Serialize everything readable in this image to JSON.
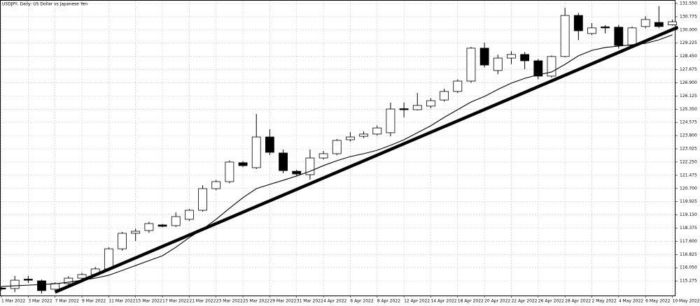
{
  "chart_data": {
    "type": "candlestick",
    "title": "USDJPY, Daily:  US Dollar vs Japanese Yen",
    "categories": [
      "1 Mar 2022",
      null,
      "3 Mar 2022",
      null,
      "7 Mar 2022",
      null,
      "9 Mar 2022",
      null,
      "11 Mar 2022",
      null,
      "15 Mar 2022",
      null,
      "17 Mar 2022",
      null,
      "21 Mar 2022",
      null,
      "23 Mar 2022",
      null,
      "25 Mar 2022",
      null,
      "29 Mar 2022",
      null,
      "31 Mar 2022",
      null,
      "4 Apr 2022",
      null,
      "6 Apr 2022",
      null,
      "8 Apr 2022",
      null,
      "12 Apr 2022",
      null,
      "14 Apr 2022",
      null,
      "18 Apr 2022",
      null,
      "20 Apr 2022",
      null,
      "22 Apr 2022",
      null,
      "26 Apr 2022",
      null,
      "28 Apr 2022",
      null,
      "2 May 2022",
      null,
      "4 May 2022",
      null,
      "6 May 2022",
      null,
      "10 May 2022"
    ],
    "open": [
      114.86,
      114.83,
      115.38,
      115.28,
      114.79,
      115.12,
      115.44,
      115.65,
      115.98,
      117.16,
      118.07,
      118.23,
      118.56,
      118.52,
      118.89,
      119.42,
      120.69,
      121.1,
      122.21,
      121.92,
      123.72,
      122.78,
      121.71,
      121.51,
      122.49,
      122.74,
      123.56,
      123.76,
      123.89,
      123.97,
      125.38,
      125.32,
      125.53,
      125.89,
      126.39,
      127.0,
      128.93,
      127.62,
      128.35,
      128.56,
      128.19,
      127.29,
      128.44,
      130.85,
      129.79,
      130.18,
      130.16,
      129.09,
      130.2,
      130.44,
      130.3
    ],
    "high": [
      114.95,
      115.57,
      115.57,
      115.36,
      115.2,
      115.55,
      115.75,
      116.1,
      117.25,
      118.15,
      118.35,
      118.75,
      118.62,
      119.3,
      119.5,
      120.89,
      121.2,
      122.35,
      122.3,
      125.07,
      124.17,
      122.98,
      121.8,
      122.98,
      122.9,
      123.6,
      124.0,
      124.05,
      124.4,
      125.73,
      125.73,
      126.3,
      126.0,
      126.55,
      127.1,
      129.0,
      129.25,
      128.55,
      128.75,
      128.7,
      128.3,
      128.5,
      131.3,
      131.0,
      130.4,
      130.28,
      130.3,
      130.2,
      130.8,
      131.4,
      130.6
    ],
    "low": [
      114.72,
      114.62,
      115.16,
      114.54,
      114.7,
      115.05,
      115.38,
      115.55,
      115.9,
      117.05,
      117.62,
      118.1,
      118.42,
      118.44,
      118.8,
      119.34,
      120.6,
      121.0,
      121.95,
      121.84,
      122.66,
      121.59,
      121.45,
      121.22,
      122.4,
      122.65,
      123.45,
      123.65,
      123.8,
      123.76,
      124.87,
      125.28,
      125.4,
      125.8,
      126.3,
      126.9,
      127.8,
      127.4,
      128.0,
      127.7,
      127.1,
      127.2,
      128.39,
      129.4,
      129.7,
      129.79,
      128.9,
      129.0,
      130.1,
      130.1,
      130.25
    ],
    "close": [
      114.8,
      115.32,
      115.34,
      114.71,
      115.12,
      115.44,
      115.65,
      115.98,
      117.16,
      118.07,
      118.19,
      118.64,
      118.48,
      119.05,
      119.42,
      120.69,
      121.1,
      122.25,
      122.04,
      123.72,
      122.82,
      121.75,
      121.55,
      122.49,
      122.74,
      123.52,
      123.72,
      123.89,
      124.25,
      125.36,
      125.34,
      125.57,
      125.85,
      126.39,
      127.0,
      128.93,
      127.94,
      128.35,
      128.56,
      128.19,
      127.29,
      128.44,
      130.85,
      129.95,
      130.12,
      130.14,
      129.09,
      130.12,
      130.61,
      130.2,
      130.48
    ],
    "up_color": "#ffffff",
    "down_color": "#000000",
    "moving_average": [
      114.95,
      114.99,
      115.03,
      115.07,
      115.11,
      115.2,
      115.32,
      115.44,
      115.61,
      115.89,
      116.18,
      116.47,
      116.75,
      117.25,
      117.82,
      118.31,
      118.89,
      119.54,
      120.16,
      120.69,
      120.94,
      121.18,
      121.43,
      121.71,
      122.04,
      122.33,
      122.57,
      122.74,
      122.94,
      123.23,
      123.56,
      123.97,
      124.38,
      124.87,
      125.32,
      125.77,
      126.1,
      126.51,
      126.88,
      127.16,
      127.37,
      127.53,
      127.98,
      128.48,
      128.8,
      128.97,
      129.05,
      129.13,
      129.21,
      129.42,
      129.71
    ],
    "trendline": {
      "start": 114.62,
      "end": 130.16
    },
    "ylim": [
      114.42,
      131.755
    ],
    "yticks": [
      {
        "value": 131.55,
        "label": "131.550"
      },
      130.775,
      {
        "value": 130,
        "label": "130.000"
      },
      129.225,
      {
        "value": 128.45,
        "label": "128.450"
      },
      127.675,
      {
        "value": 126.9,
        "label": "126.900"
      },
      126.125,
      {
        "value": 125.35,
        "label": "125.350"
      },
      124.575,
      {
        "value": 123.8,
        "label": "123.800"
      },
      123.025,
      {
        "value": 122.25,
        "label": "122.250"
      },
      121.475,
      {
        "value": 120.7,
        "label": "120.700"
      },
      119.925,
      {
        "value": 119.15,
        "label": "119.150"
      },
      118.375,
      {
        "value": 117.6,
        "label": "117.600"
      },
      116.825,
      {
        "value": 116.05,
        "label": "116.050"
      },
      115.275
    ],
    "grid": true
  }
}
